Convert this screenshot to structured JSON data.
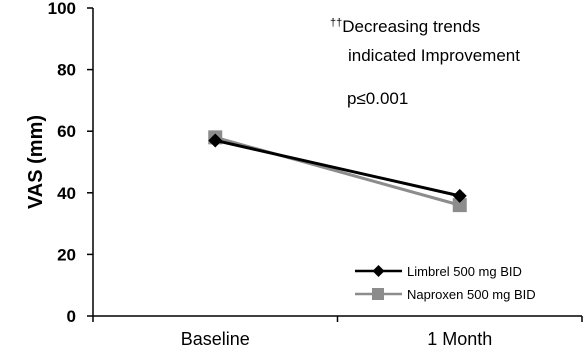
{
  "chart_data": {
    "type": "line",
    "title": "",
    "xlabel": "",
    "ylabel": "VAS (mm)",
    "categories": [
      "Baseline",
      "1 Month"
    ],
    "ylim": [
      0,
      100
    ],
    "yticks": [
      "0",
      "20",
      "40",
      "60",
      "80",
      "100"
    ],
    "grid": false,
    "legend_position": "bottom-right",
    "series": [
      {
        "name": "Limbrel 500 mg BID",
        "values": [
          57,
          39
        ],
        "color": "#000000",
        "marker": "diamond"
      },
      {
        "name": "Naproxen 500 mg BID",
        "values": [
          58,
          36
        ],
        "color": "#8c8c8c",
        "marker": "square"
      }
    ],
    "annotations": [
      {
        "sup": "††",
        "text": "Decreasing trends"
      },
      {
        "sup": "",
        "text": "indicated Improvement"
      },
      {
        "sup": "",
        "text": "p≤0.001"
      }
    ]
  }
}
